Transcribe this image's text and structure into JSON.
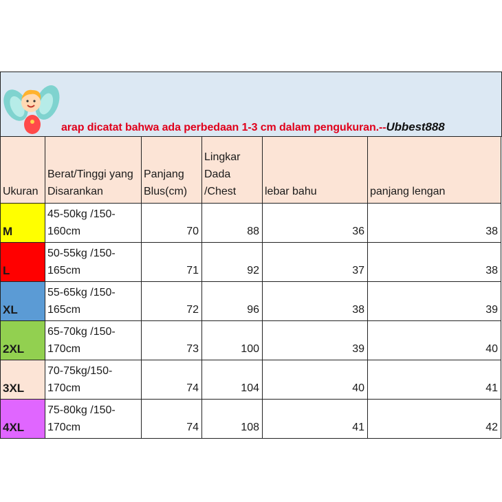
{
  "banner": {
    "notice_text": "arap dicatat bahwa ada perbedaan 1-3 cm dalam pengukuran.--",
    "brand": "Ubbest888"
  },
  "table": {
    "headers": {
      "size": "Ukuran",
      "weight_height": "Berat/Tinggi yang Disarankan",
      "length": "Panjang Blus(cm)",
      "chest": "Lingkar Dada /Chest",
      "shoulder": "lebar bahu",
      "sleeve": "panjang lengan"
    },
    "rows": [
      {
        "size": "M",
        "color": "#ffff00",
        "weight_height": "45-50kg /150-160cm",
        "length": "70",
        "chest": "88",
        "shoulder": "36",
        "sleeve": "38"
      },
      {
        "size": "L",
        "color": "#ff0000",
        "weight_height": "50-55kg /150-165cm",
        "length": "71",
        "chest": "92",
        "shoulder": "37",
        "sleeve": "38"
      },
      {
        "size": "XL",
        "color": "#5b9bd5",
        "weight_height": "55-65kg /150-165cm",
        "length": "72",
        "chest": "96",
        "shoulder": "38",
        "sleeve": "39"
      },
      {
        "size": "2XL",
        "color": "#92d050",
        "weight_height": "65-70kg /150-170cm",
        "length": "73",
        "chest": "100",
        "shoulder": "39",
        "sleeve": "40"
      },
      {
        "size": "3XL",
        "color": "#fce4d6",
        "weight_height": "70-75kg/150-170cm",
        "length": "74",
        "chest": "104",
        "shoulder": "40",
        "sleeve": "41"
      },
      {
        "size": "4XL",
        "color": "#e066ff",
        "weight_height": "75-80kg /150-170cm",
        "length": "74",
        "chest": "108",
        "shoulder": "41",
        "sleeve": "42"
      }
    ]
  }
}
